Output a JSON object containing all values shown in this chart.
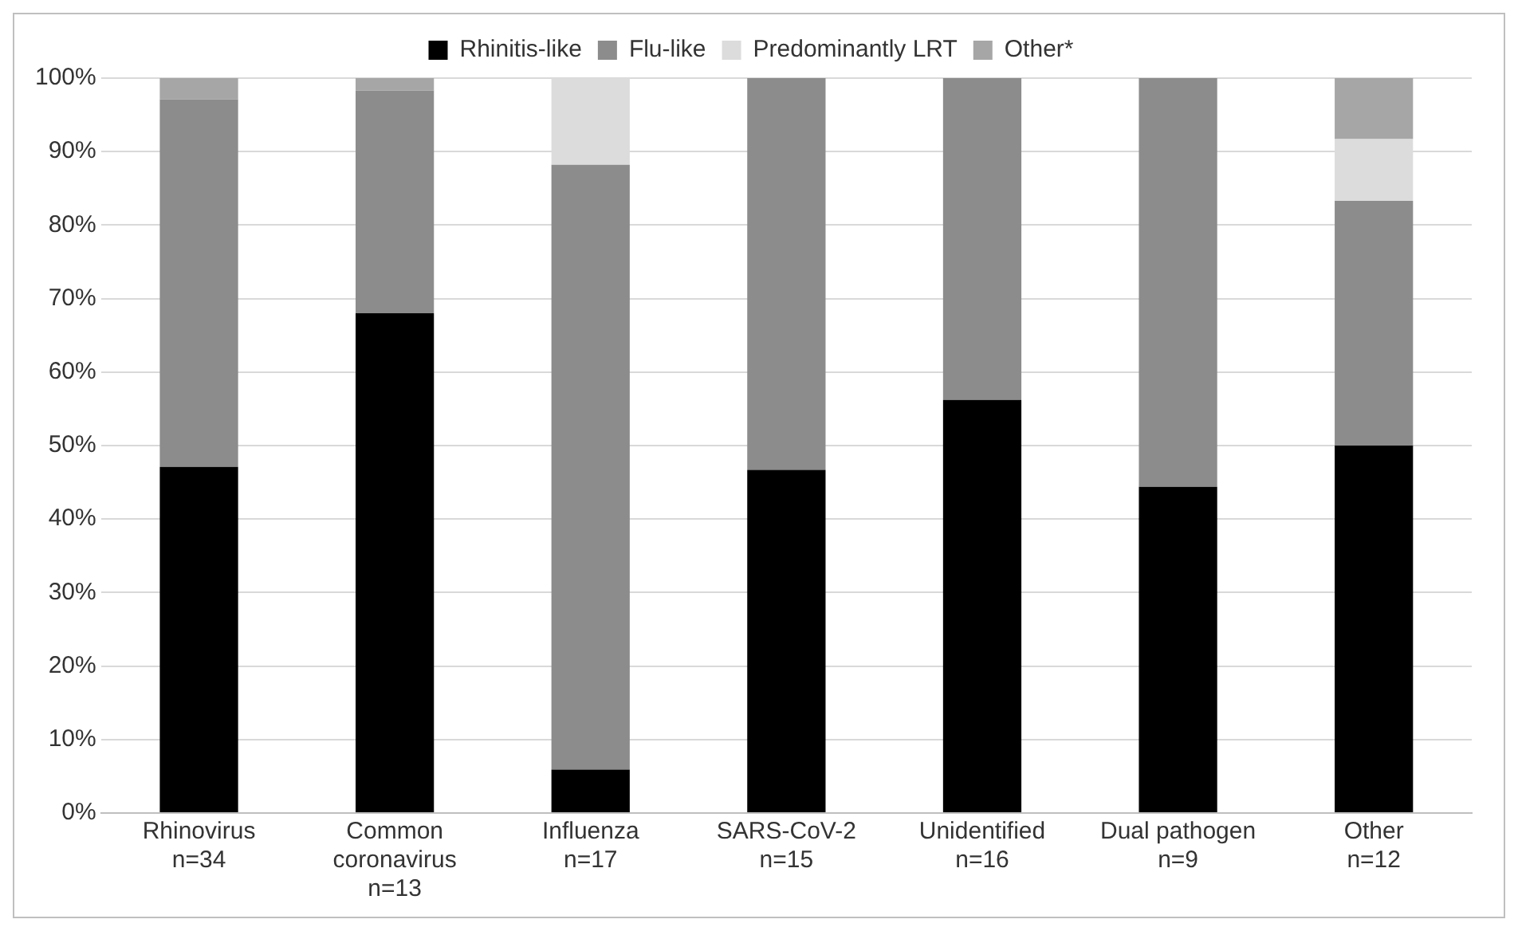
{
  "chart_data": {
    "type": "bar",
    "stacked": true,
    "categories": [
      "Rhinovirus\nn=34",
      "Common\ncoronavirus\nn=13",
      "Influenza\nn=17",
      "SARS-CoV-2\nn=15",
      "Unidentified\nn=16",
      "Dual pathogen\nn=9",
      "Other\nn=12"
    ],
    "series": [
      {
        "name": "Rhinitis-like",
        "color": "#000000",
        "values": [
          47.1,
          68,
          5.9,
          46.7,
          56.2,
          44.4,
          50
        ]
      },
      {
        "name": "Flu-like",
        "color": "#8c8c8c",
        "values": [
          50,
          30.3,
          82.3,
          53.3,
          43.8,
          55.6,
          33.3
        ]
      },
      {
        "name": "Predominantly LRT",
        "color": "#dcdcdc",
        "values": [
          0,
          0,
          11.8,
          0,
          0,
          0,
          8.4
        ]
      },
      {
        "name": "Other*",
        "color": "#a6a6a6",
        "values": [
          2.9,
          1.7,
          0,
          0,
          0,
          0,
          8.3
        ]
      }
    ],
    "ylim": [
      0,
      100
    ],
    "yticks": [
      {
        "value": 0,
        "label": "0%"
      },
      {
        "value": 10,
        "label": "10%"
      },
      {
        "value": 20,
        "label": "20%"
      },
      {
        "value": 30,
        "label": "30%"
      },
      {
        "value": 40,
        "label": "40%"
      },
      {
        "value": 50,
        "label": "50%"
      },
      {
        "value": 60,
        "label": "60%"
      },
      {
        "value": 70,
        "label": "70%"
      },
      {
        "value": 80,
        "label": "80%"
      },
      {
        "value": 90,
        "label": "90%"
      },
      {
        "value": 100,
        "label": "100%"
      }
    ],
    "grid": "y",
    "legend": "top"
  }
}
